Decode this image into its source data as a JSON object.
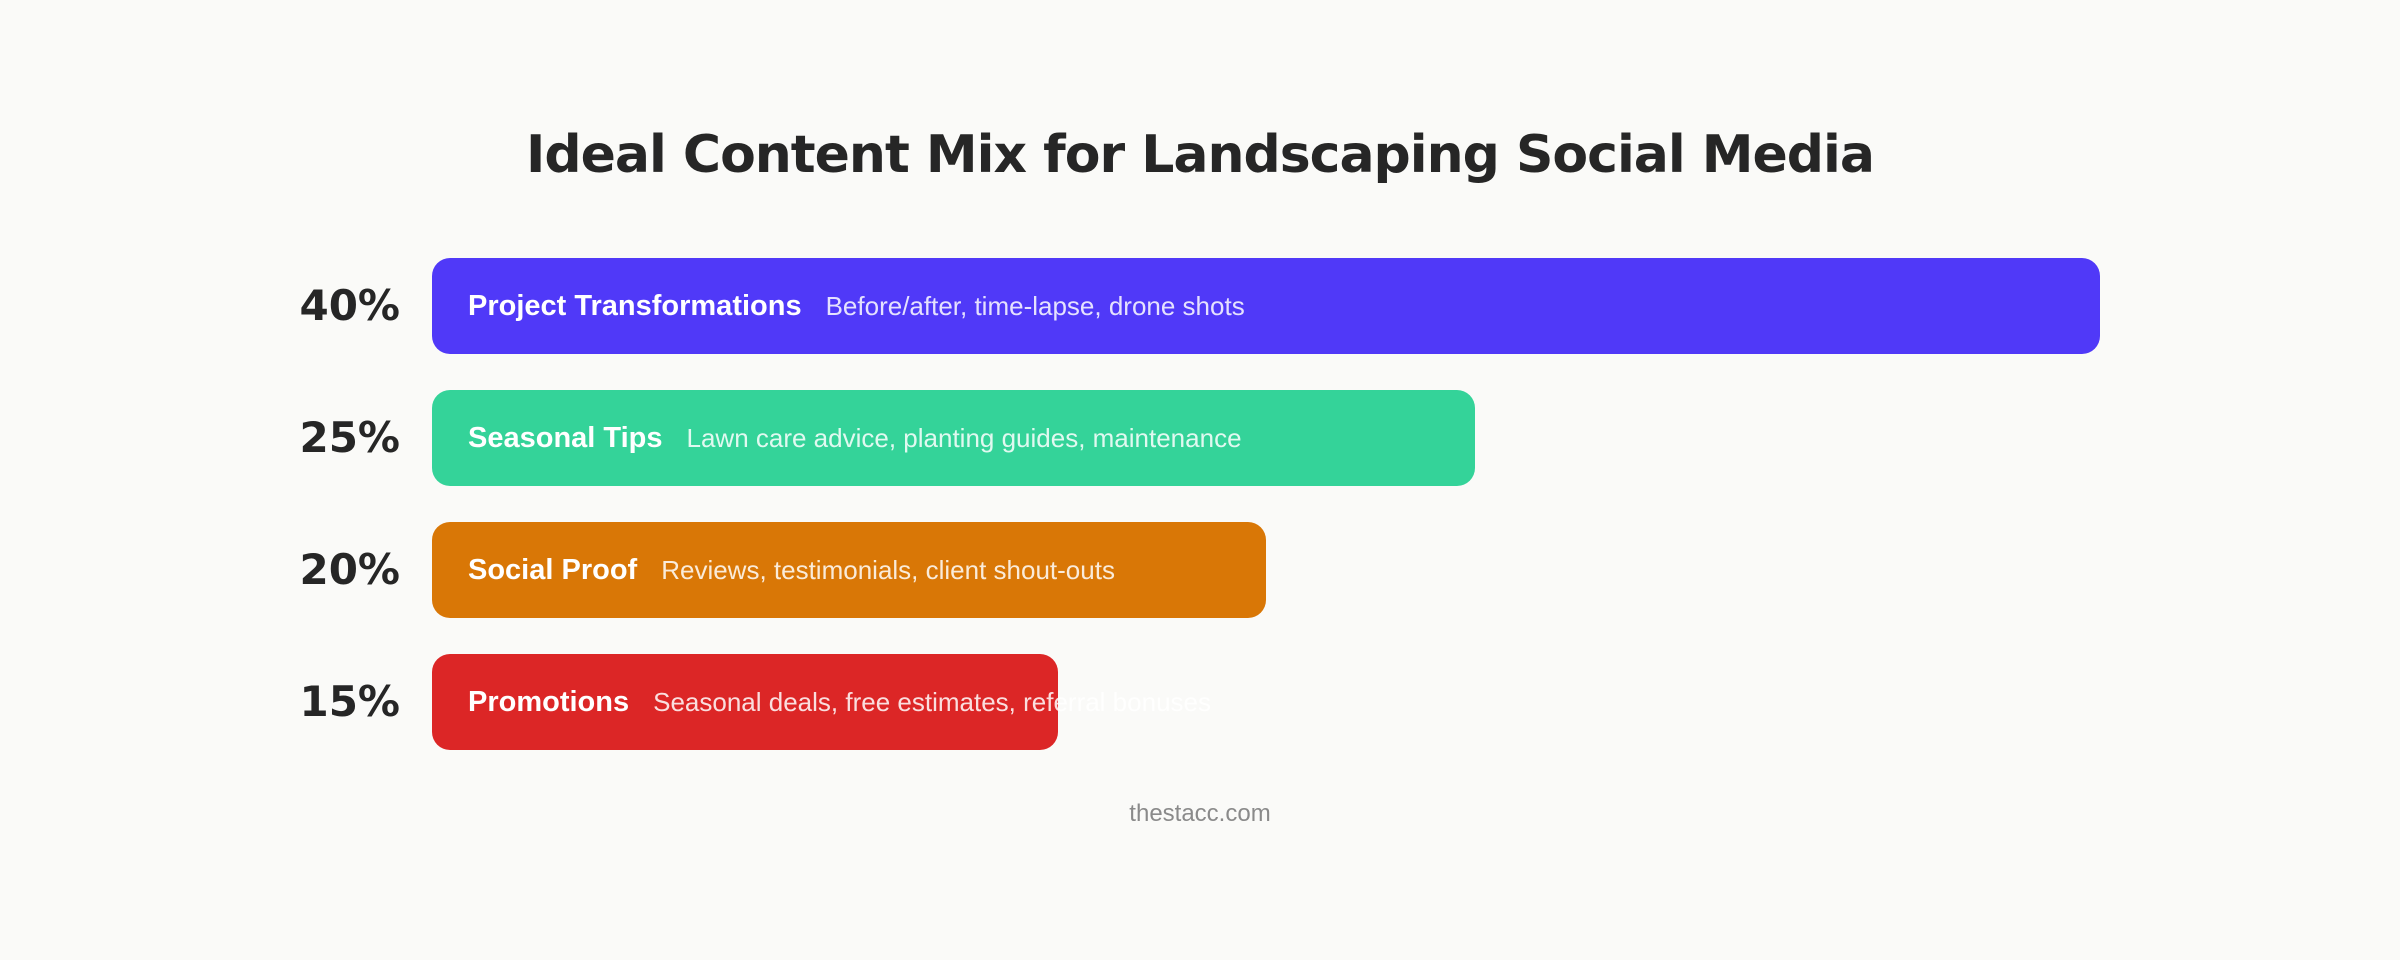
{
  "title": "Ideal Content Mix for Landscaping Social Media",
  "source": "thestacc.com",
  "chart_data": {
    "type": "bar",
    "orientation": "horizontal",
    "title": "Ideal Content Mix for Landscaping Social Media",
    "unit": "%",
    "categories": [
      "Project Transformations",
      "Seasonal Tips",
      "Social Proof",
      "Promotions"
    ],
    "values": [
      40,
      25,
      20,
      15
    ],
    "value_labels": [
      "40%",
      "25%",
      "20%",
      "15%"
    ],
    "descriptions": [
      "Before/after, time-lapse, drone shots",
      "Lawn care advice, planting guides, maintenance",
      "Reviews, testimonials, client shout-outs",
      "Seasonal deals, free estimates, referral bonuses"
    ],
    "colors": [
      "#5039f8",
      "#34d399",
      "#d97706",
      "#dc2626"
    ],
    "xlim": [
      0,
      40
    ],
    "grid": false,
    "legend": "none"
  }
}
